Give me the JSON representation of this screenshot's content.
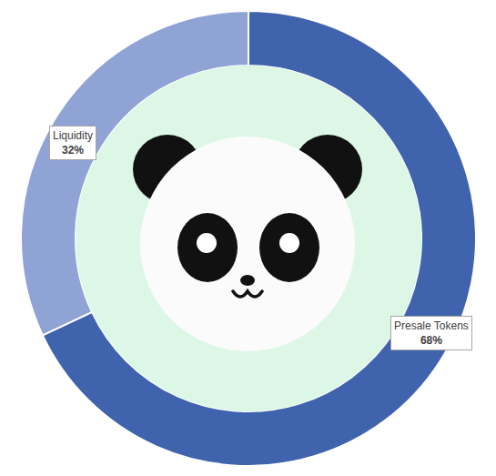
{
  "chart_data": {
    "type": "pie",
    "categories": [
      "Presale Tokens",
      "Liquidity"
    ],
    "values": [
      68,
      32
    ],
    "value_labels": [
      "68%",
      "32%"
    ],
    "colors": [
      "#4063ad",
      "#8fa4d5"
    ],
    "data_labels": true
  }
}
